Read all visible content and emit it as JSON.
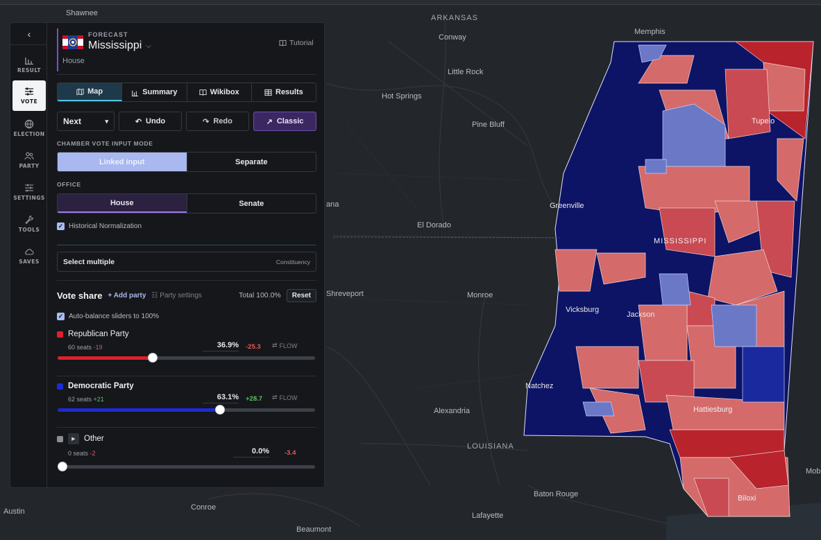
{
  "map": {
    "state_label": "MISSISSIPPI",
    "cities": [
      {
        "name": "Shawnee",
        "pos": "a"
      },
      {
        "name": "ARKANSAS"
      },
      {
        "name": "Memphis"
      },
      {
        "name": "Conway"
      },
      {
        "name": "Little Rock"
      },
      {
        "name": "Hot Springs"
      },
      {
        "name": "Pine Bluff"
      },
      {
        "name": "Tupelo"
      },
      {
        "name": "Greenville"
      },
      {
        "name": "El Dorado"
      },
      {
        "name": "Shreveport"
      },
      {
        "name": "Monroe"
      },
      {
        "name": "Vicksburg"
      },
      {
        "name": "Jackson"
      },
      {
        "name": "Natchez"
      },
      {
        "name": "Alexandria"
      },
      {
        "name": "Hattiesburg"
      },
      {
        "name": "LOUISIANA"
      },
      {
        "name": "Baton Rouge"
      },
      {
        "name": "Lafayette"
      },
      {
        "name": "Biloxi"
      },
      {
        "name": "Conroe"
      },
      {
        "name": "Austin"
      },
      {
        "name": "Beaumont"
      },
      {
        "name": "ana"
      },
      {
        "name": "Mob"
      }
    ],
    "colors": {
      "dem_strong": "#0d1466",
      "dem_lean": "#6b78c6",
      "dem_mid": "#1a2a9e",
      "rep_strong": "#b8232c",
      "rep_lean": "#d46a6a",
      "rep_mid": "#c94a52"
    }
  },
  "nav": {
    "items": [
      {
        "label": "RESULT",
        "icon": "bar-chart-icon"
      },
      {
        "label": "VOTE",
        "icon": "sliders-icon"
      },
      {
        "label": "ELECTION",
        "icon": "globe-icon"
      },
      {
        "label": "PARTY",
        "icon": "people-icon"
      },
      {
        "label": "SETTINGS",
        "icon": "settings-icon"
      },
      {
        "label": "TOOLS",
        "icon": "wrench-icon"
      },
      {
        "label": "SAVES",
        "icon": "cloud-icon"
      }
    ]
  },
  "header": {
    "kicker": "FORECAST",
    "state": "Mississippi",
    "subtitle": "House",
    "tutorial": "Tutorial"
  },
  "tabs": [
    "Map",
    "Summary",
    "Wikibox",
    "Results"
  ],
  "actions": {
    "select_value": "Next",
    "undo": "Undo",
    "redo": "Redo",
    "classic": "Classic"
  },
  "chamber": {
    "label": "CHAMBER VOTE INPUT MODE",
    "options": [
      "Linked input",
      "Separate"
    ]
  },
  "office": {
    "label": "OFFICE",
    "options": [
      "House",
      "Senate"
    ]
  },
  "historical_normalization": "Historical Normalization",
  "select_multiple": {
    "label": "Select multiple",
    "mode": "Constituency"
  },
  "vote_share": {
    "title": "Vote share",
    "add_party": "+ Add party",
    "party_settings": "Party settings",
    "total": "Total 100.0%",
    "reset": "Reset",
    "auto_balance": "Auto-balance sliders to 100%"
  },
  "parties": [
    {
      "name": "Republican Party",
      "color": "#e0202c",
      "seats": "60 seats",
      "seat_change": "-19",
      "pct": "36.9%",
      "delta": "-25.3",
      "flow": "FLOW",
      "value": 36.9
    },
    {
      "name": "Democratic Party",
      "color": "#1f2ad1",
      "seats": "62 seats",
      "seat_change": "+21",
      "pct": "63.1%",
      "delta": "+28.7",
      "flow": "FLOW",
      "value": 63.1
    },
    {
      "name": "Other",
      "color": "#8a8f96",
      "seats": "0 seats",
      "seat_change": "-2",
      "pct": "0.0%",
      "delta": "-3.4",
      "flow": "",
      "value": 0.0
    }
  ]
}
